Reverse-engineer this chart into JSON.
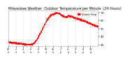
{
  "title": "Milwaukee Weather  Outdoor Temperature per Minute  (24 Hours)",
  "bg_color": "#ffffff",
  "dot_color": "#ff0000",
  "dot_size": 0.3,
  "ylim": [
    28,
    72
  ],
  "yticks": [
    30,
    40,
    50,
    60,
    70
  ],
  "ytick_labels": [
    "30",
    "40",
    "50",
    "60",
    "70"
  ],
  "num_points": 1440,
  "legend_color": "#ff0000",
  "legend_label": "Outdoor Temp",
  "title_fontsize": 3.5,
  "tick_fontsize": 2.8,
  "xtick_fontsize": 2.2
}
